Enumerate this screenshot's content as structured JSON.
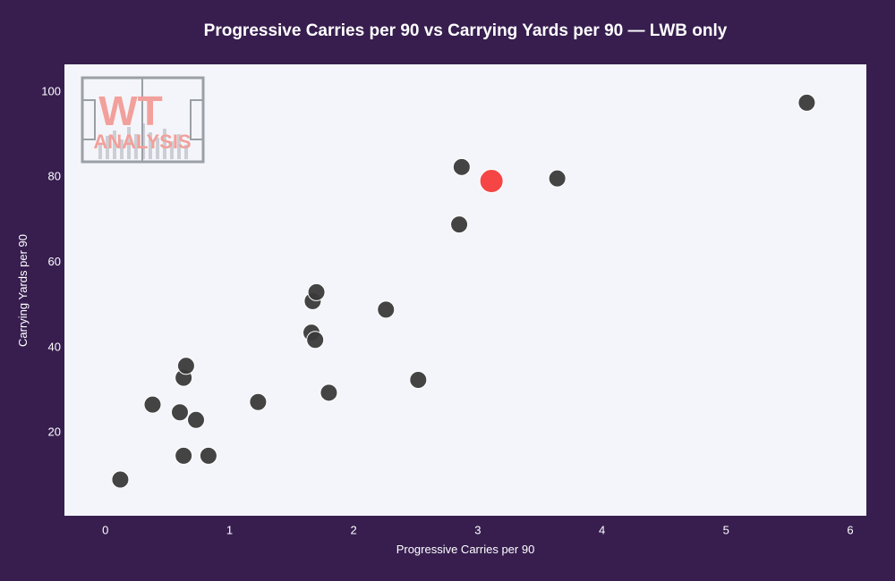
{
  "chart_data": {
    "type": "scatter",
    "title": "Progressive Carries per 90 vs Carrying Yards per 90 — LWB only",
    "xlabel": "Progressive Carries per 90",
    "ylabel": "Carrying Yards per 90",
    "xlim": [
      -0.33,
      6.13
    ],
    "ylim": [
      0.5,
      106.5
    ],
    "x_ticks": [
      0,
      1,
      2,
      3,
      4,
      5,
      6
    ],
    "y_ticks": [
      20,
      40,
      60,
      80,
      100
    ],
    "grid": false,
    "series": [
      {
        "points": [
          {
            "x": 0.12,
            "y": 9.0
          },
          {
            "x": 0.38,
            "y": 26.6
          },
          {
            "x": 0.6,
            "y": 24.8
          },
          {
            "x": 0.63,
            "y": 14.6
          },
          {
            "x": 0.63,
            "y": 32.9
          },
          {
            "x": 0.65,
            "y": 35.7
          },
          {
            "x": 0.73,
            "y": 23.0
          },
          {
            "x": 0.83,
            "y": 14.6
          },
          {
            "x": 1.23,
            "y": 27.2
          },
          {
            "x": 1.66,
            "y": 43.5
          },
          {
            "x": 1.67,
            "y": 50.9
          },
          {
            "x": 1.69,
            "y": 41.8
          },
          {
            "x": 1.7,
            "y": 53.0
          },
          {
            "x": 1.8,
            "y": 29.4
          },
          {
            "x": 2.26,
            "y": 48.9
          },
          {
            "x": 2.52,
            "y": 32.4
          },
          {
            "x": 2.85,
            "y": 68.9
          },
          {
            "x": 2.87,
            "y": 82.4
          },
          {
            "x": 3.64,
            "y": 79.7
          },
          {
            "x": 5.65,
            "y": 97.5
          }
        ],
        "color": "#3a3a3a"
      },
      {
        "points": [
          {
            "x": 3.11,
            "y": 79.1
          }
        ],
        "color": "#f54545"
      }
    ]
  },
  "colors": {
    "page_background": "#371e4f",
    "plot_background": "#f4f5fa",
    "logo_frame": "#9aa0a6",
    "logo_text": "#f2a09b"
  },
  "logo": {
    "line1": "WT",
    "line2": "ANALYSIS"
  }
}
